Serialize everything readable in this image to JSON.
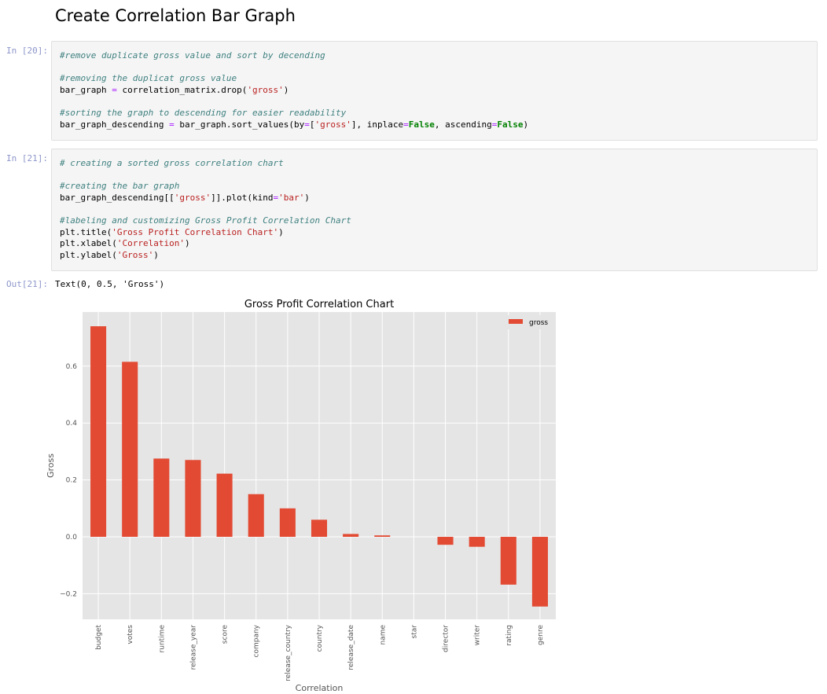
{
  "heading": "Create Correlation Bar Graph",
  "cells": [
    {
      "prompt": "In [20]:",
      "lines": [
        [
          {
            "t": "#remove duplicate gross value and sort by decending",
            "c": "c"
          }
        ],
        [],
        [
          {
            "t": "#removing the duplicat gross value",
            "c": "c"
          }
        ],
        [
          {
            "t": "bar_graph "
          },
          {
            "t": "=",
            "c": "o"
          },
          {
            "t": " correlation_matrix.drop("
          },
          {
            "t": "'gross'",
            "c": "s"
          },
          {
            "t": ")"
          }
        ],
        [],
        [
          {
            "t": "#sorting the graph to descending for easier readability",
            "c": "c"
          }
        ],
        [
          {
            "t": "bar_graph_descending "
          },
          {
            "t": "=",
            "c": "o"
          },
          {
            "t": " bar_graph.sort_values(by"
          },
          {
            "t": "=",
            "c": "o"
          },
          {
            "t": "["
          },
          {
            "t": "'gross'",
            "c": "s"
          },
          {
            "t": "], inplace"
          },
          {
            "t": "=",
            "c": "o"
          },
          {
            "t": "False",
            "c": "k"
          },
          {
            "t": ", ascending"
          },
          {
            "t": "=",
            "c": "o"
          },
          {
            "t": "False",
            "c": "k"
          },
          {
            "t": ")"
          }
        ]
      ]
    },
    {
      "prompt": "In [21]:",
      "lines": [
        [
          {
            "t": "# creating a sorted gross correlation chart",
            "c": "c"
          }
        ],
        [],
        [
          {
            "t": "#creating the bar graph",
            "c": "c"
          }
        ],
        [
          {
            "t": "bar_graph_descending[["
          },
          {
            "t": "'gross'",
            "c": "s"
          },
          {
            "t": "]].plot(kind"
          },
          {
            "t": "=",
            "c": "o"
          },
          {
            "t": "'bar'",
            "c": "s"
          },
          {
            "t": ")"
          }
        ],
        [],
        [
          {
            "t": "#labeling and customizing Gross Profit Correlation Chart",
            "c": "c"
          }
        ],
        [
          {
            "t": "plt.title("
          },
          {
            "t": "'Gross Profit Correlation Chart'",
            "c": "s"
          },
          {
            "t": ")"
          }
        ],
        [
          {
            "t": "plt.xlabel("
          },
          {
            "t": "'Correlation'",
            "c": "s"
          },
          {
            "t": ")"
          }
        ],
        [
          {
            "t": "plt.ylabel("
          },
          {
            "t": "'Gross'",
            "c": "s"
          },
          {
            "t": ")"
          }
        ]
      ]
    }
  ],
  "output": {
    "prompt": "Out[21]:",
    "text": "Text(0, 0.5, 'Gross')"
  },
  "colors": {
    "bar": "#e24a33",
    "plot_bg": "#e5e5e5",
    "grid": "#ffffff"
  },
  "chart_data": {
    "type": "bar",
    "title": "Gross Profit Correlation Chart",
    "xlabel": "Correlation",
    "ylabel": "Gross",
    "categories": [
      "budget",
      "votes",
      "runtime",
      "release_year",
      "score",
      "company",
      "release_country",
      "country",
      "release_date",
      "name",
      "star",
      "director",
      "writer",
      "rating",
      "genre"
    ],
    "series": [
      {
        "name": "gross",
        "values": [
          0.74,
          0.615,
          0.275,
          0.27,
          0.222,
          0.15,
          0.1,
          0.06,
          0.01,
          0.005,
          0.0,
          -0.028,
          -0.035,
          -0.168,
          -0.245
        ]
      }
    ],
    "ylim": [
      -0.29,
      0.79
    ],
    "yticks": [
      -0.2,
      0.0,
      0.2,
      0.4,
      0.6
    ],
    "ytick_labels": [
      "−0.2",
      "0.0",
      "0.2",
      "0.4",
      "0.6"
    ],
    "legend": "top-right",
    "grid": true,
    "style": "ggplot"
  }
}
